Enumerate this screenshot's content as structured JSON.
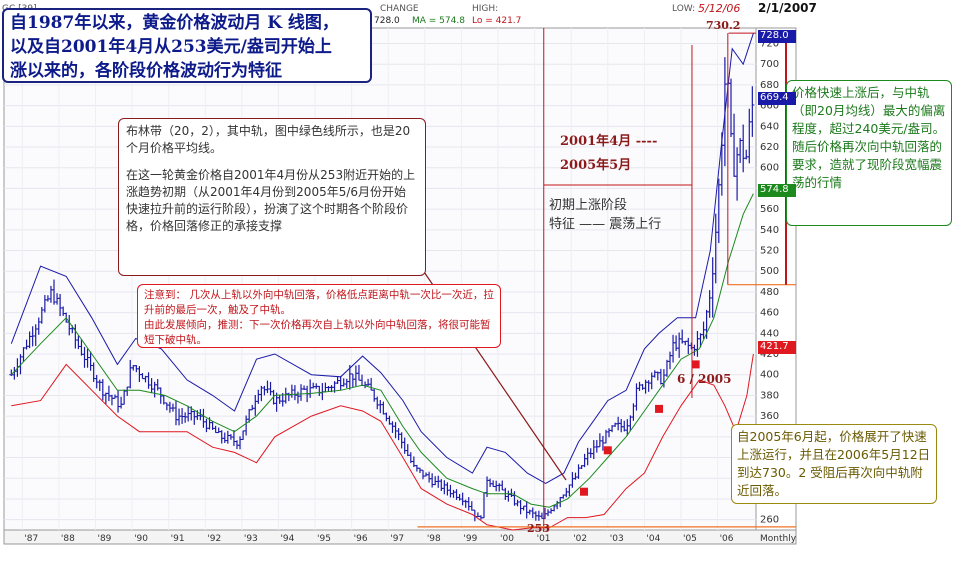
{
  "header": {
    "symbol": "GC [39]",
    "high_label": "HIGH:",
    "low_label": "LOW:",
    "change_label": "CHANGE",
    "date_note": "5/12/06",
    "date": "2/1/2007",
    "hi_text": "728.0",
    "ma_text": "MA = 574.8",
    "lo_text": "Lo = 421.7"
  },
  "title_lines": [
    "自1987年以来，黄金价格波动月 K 线图，",
    "以及自2001年4月从253美元/盎司开始上",
    "涨以来的，各阶段价格波动行为特征"
  ],
  "boll_box": {
    "p1": "布林带（20，2），其中轨，图中绿色线所示，也是20个月价格平均线。",
    "p2": "在这一轮黄金价格自2001年4月份从253附近开始的上涨趋势初期（从2001年4月份到2005年5/6月份开始快速拉升前的运行阶段），扮演了这个时期各个阶段价格，价格回落修正的承接支撑"
  },
  "note_box": {
    "line1": "注意到：  几次从上轨以外向中轨回落，价格低点距离中轨一次比一次近，拉升前的最后一次，触及了中轨。",
    "line2": "由此发展倾向，推测：下一次价格再次自上轨以外向中轨回落，将很可能暂短下破中轨。"
  },
  "period_box": {
    "line1": "2001年4月 ----",
    "line2": "2005年5月"
  },
  "early_box": {
    "line1": "初期上涨阶段",
    "line2": "特征 —— 震荡上行"
  },
  "green_box": {
    "text": "价格快速上涨后，与中轨（即20月均线）最大的偏离程度，超过240美元/盎司。随后价格再次向中轨回落的要求，造就了现阶段宽幅震荡的行情"
  },
  "yellow_box": {
    "text": "自2005年6月起，价格展开了快速上涨运行，并且在2006年5月12日到达730。2 受阻后再次向中轨附近回落。"
  },
  "labels": {
    "peak": "730.2",
    "low": "253",
    "june2005": "6 / 2005"
  },
  "markers": {
    "current_price": "669.4",
    "upper_tag": "728.0",
    "ma_tag": "574.8",
    "lower_tag": "421.7"
  },
  "colors": {
    "price": "#1a1aa8",
    "upper": "#1a1aa8",
    "middle": "#1c8a1c",
    "lower": "#e0181f",
    "annot": "#c0151b",
    "orange": "#f07020"
  },
  "chart_data": {
    "type": "bar",
    "subtype": "ohlc-monthly",
    "x_tick_labels": [
      "'87",
      "'88",
      "'89",
      "'90",
      "'91",
      "'92",
      "'93",
      "'94",
      "'95",
      "'96",
      "'97",
      "'98",
      "'99",
      "'00",
      "'01",
      "'02",
      "'03",
      "'04",
      "'05",
      "'06",
      "Monthly"
    ],
    "y_ticks": [
      260,
      280,
      300,
      320,
      340,
      360,
      380,
      400,
      420,
      440,
      460,
      480,
      500,
      520,
      540,
      560,
      580,
      600,
      620,
      640,
      660,
      680,
      700,
      720
    ],
    "ylim": [
      250,
      735
    ],
    "price_anchors": [
      [
        1986.8,
        400
      ],
      [
        1987.9,
        480
      ],
      [
        1988.6,
        430
      ],
      [
        1989.3,
        385
      ],
      [
        1989.8,
        370
      ],
      [
        1990.1,
        410
      ],
      [
        1990.8,
        385
      ],
      [
        1991.3,
        360
      ],
      [
        1991.9,
        360
      ],
      [
        1992.5,
        340
      ],
      [
        1993.0,
        335
      ],
      [
        1993.6,
        390
      ],
      [
        1994.0,
        375
      ],
      [
        1994.8,
        385
      ],
      [
        1995.3,
        385
      ],
      [
        1996.1,
        400
      ],
      [
        1996.6,
        385
      ],
      [
        1996.9,
        370
      ],
      [
        1997.4,
        340
      ],
      [
        1997.8,
        310
      ],
      [
        1998.4,
        295
      ],
      [
        1999.2,
        280
      ],
      [
        1999.6,
        258
      ],
      [
        1999.8,
        300
      ],
      [
        2000.3,
        285
      ],
      [
        2000.8,
        270
      ],
      [
        2001.3,
        260
      ],
      [
        2001.7,
        278
      ],
      [
        2002.2,
        300
      ],
      [
        2002.5,
        320
      ],
      [
        2002.9,
        335
      ],
      [
        2003.3,
        350
      ],
      [
        2003.6,
        350
      ],
      [
        2003.9,
        385
      ],
      [
        2004.3,
        400
      ],
      [
        2004.6,
        395
      ],
      [
        2004.9,
        430
      ],
      [
        2005.2,
        430
      ],
      [
        2005.4,
        425
      ],
      [
        2005.7,
        440
      ],
      [
        2005.9,
        480
      ],
      [
        2006.1,
        560
      ],
      [
        2006.33,
        700
      ],
      [
        2006.5,
        600
      ],
      [
        2006.7,
        620
      ],
      [
        2006.9,
        610
      ],
      [
        2007.0,
        650
      ],
      [
        2007.08,
        665
      ]
    ],
    "upper_band_anchors": [
      [
        1986.8,
        430
      ],
      [
        1987.6,
        505
      ],
      [
        1988.3,
        495
      ],
      [
        1989.0,
        455
      ],
      [
        1989.7,
        410
      ],
      [
        1990.2,
        435
      ],
      [
        1990.9,
        425
      ],
      [
        1991.6,
        395
      ],
      [
        1992.3,
        380
      ],
      [
        1992.9,
        365
      ],
      [
        1993.5,
        415
      ],
      [
        1994.0,
        420
      ],
      [
        1995.0,
        400
      ],
      [
        1995.8,
        398
      ],
      [
        1996.4,
        418
      ],
      [
        1996.9,
        402
      ],
      [
        1997.5,
        375
      ],
      [
        1998.0,
        345
      ],
      [
        1998.7,
        320
      ],
      [
        1999.4,
        305
      ],
      [
        1999.8,
        330
      ],
      [
        2000.3,
        325
      ],
      [
        2000.9,
        305
      ],
      [
        2001.4,
        295
      ],
      [
        2001.9,
        305
      ],
      [
        2002.3,
        335
      ],
      [
        2002.7,
        355
      ],
      [
        2003.1,
        375
      ],
      [
        2003.6,
        385
      ],
      [
        2004.1,
        425
      ],
      [
        2004.5,
        440
      ],
      [
        2005.0,
        455
      ],
      [
        2005.5,
        455
      ],
      [
        2005.9,
        520
      ],
      [
        2006.2,
        620
      ],
      [
        2006.5,
        715
      ],
      [
        2006.8,
        700
      ],
      [
        2007.08,
        730
      ]
    ],
    "middle_band_anchors": [
      [
        1986.8,
        400
      ],
      [
        1987.6,
        430
      ],
      [
        1988.3,
        455
      ],
      [
        1989.0,
        420
      ],
      [
        1989.7,
        385
      ],
      [
        1990.3,
        385
      ],
      [
        1991.0,
        380
      ],
      [
        1991.6,
        370
      ],
      [
        1992.3,
        355
      ],
      [
        1992.9,
        345
      ],
      [
        1993.5,
        360
      ],
      [
        1994.0,
        380
      ],
      [
        1995.0,
        382
      ],
      [
        1995.8,
        385
      ],
      [
        1996.4,
        390
      ],
      [
        1996.9,
        385
      ],
      [
        1997.5,
        350
      ],
      [
        1998.0,
        325
      ],
      [
        1998.7,
        300
      ],
      [
        1999.4,
        290
      ],
      [
        1999.8,
        285
      ],
      [
        2000.5,
        285
      ],
      [
        2001.0,
        275
      ],
      [
        2001.5,
        272
      ],
      [
        2002.0,
        280
      ],
      [
        2002.6,
        300
      ],
      [
        2003.1,
        320
      ],
      [
        2003.6,
        340
      ],
      [
        2004.1,
        365
      ],
      [
        2004.6,
        390
      ],
      [
        2005.1,
        415
      ],
      [
        2005.6,
        425
      ],
      [
        2006.0,
        455
      ],
      [
        2006.4,
        510
      ],
      [
        2006.8,
        555
      ],
      [
        2007.08,
        575
      ]
    ],
    "lower_band_anchors": [
      [
        1986.8,
        370
      ],
      [
        1987.6,
        375
      ],
      [
        1988.3,
        410
      ],
      [
        1989.0,
        385
      ],
      [
        1989.7,
        360
      ],
      [
        1990.3,
        345
      ],
      [
        1991.0,
        345
      ],
      [
        1991.6,
        345
      ],
      [
        1992.3,
        330
      ],
      [
        1992.9,
        325
      ],
      [
        1993.5,
        315
      ],
      [
        1994.0,
        340
      ],
      [
        1995.0,
        360
      ],
      [
        1995.8,
        370
      ],
      [
        1996.4,
        365
      ],
      [
        1996.9,
        355
      ],
      [
        1997.5,
        320
      ],
      [
        1998.0,
        290
      ],
      [
        1998.7,
        275
      ],
      [
        1999.4,
        265
      ],
      [
        1999.8,
        255
      ],
      [
        2000.5,
        250
      ],
      [
        2001.0,
        252
      ],
      [
        2001.5,
        252
      ],
      [
        2002.0,
        262
      ],
      [
        2002.5,
        262
      ],
      [
        2003.0,
        265
      ],
      [
        2003.6,
        290
      ],
      [
        2004.1,
        305
      ],
      [
        2004.6,
        340
      ],
      [
        2005.1,
        370
      ],
      [
        2005.6,
        395
      ],
      [
        2006.0,
        390
      ],
      [
        2006.3,
        370
      ],
      [
        2006.6,
        345
      ],
      [
        2006.9,
        380
      ],
      [
        2007.08,
        420
      ]
    ],
    "red_square_markers": [
      [
        2002.45,
        287
      ],
      [
        2003.1,
        327
      ],
      [
        2004.5,
        367
      ],
      [
        2005.5,
        410
      ]
    ],
    "horizontal_levels": [
      253,
      487,
      730
    ]
  }
}
